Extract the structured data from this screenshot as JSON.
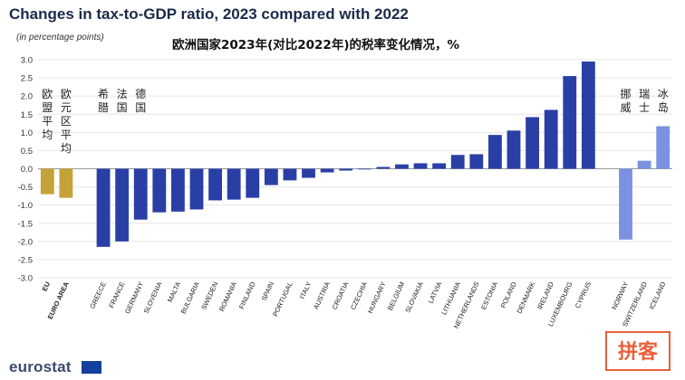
{
  "title": "Changes in tax-to-GDP ratio, 2023 compared with 2022",
  "subtitle": "(in percentage points)",
  "cn_title": "欧洲国家2023年(对比2022年)的税率变化情况，%",
  "brand": "eurostat",
  "watermark_text": "拼客",
  "colors": {
    "aggregate": "#c4a23a",
    "eu_member": "#2a3fa6",
    "efta": "#7a92e0",
    "axis_text": "#333333",
    "grid": "#e6e6e6"
  },
  "cn_labels": {
    "eu": "欧盟平均",
    "euro_area": "欧元区平均",
    "greece": "希腊",
    "france": "法国",
    "germany": "德国",
    "norway": "挪威",
    "switzerland": "瑞士",
    "iceland": "冰岛"
  },
  "chart_data": {
    "type": "bar",
    "categories": [
      "EU",
      "EURO AREA",
      "",
      "GREECE",
      "FRANCE",
      "GERMANY",
      "SLOVENIA",
      "MALTA",
      "BULGARIA",
      "SWEDEN",
      "ROMANIA",
      "FINLAND",
      "SPAIN",
      "PORTUGAL",
      "ITALY",
      "AUSTRIA",
      "CROATIA",
      "CZECHIA",
      "HUNGARY",
      "BELGIUM",
      "SLOVAKIA",
      "LATVIA",
      "LITHUANIA",
      "NETHERLANDS",
      "ESTONIA",
      "POLAND",
      "DENMARK",
      "IRELAND",
      "LUXEMBOURG",
      "CYPRUS",
      "",
      "NORWAY",
      "SWITZERLAND",
      "ICELAND"
    ],
    "groups": [
      "aggregate",
      "aggregate",
      "gap",
      "eu_member",
      "eu_member",
      "eu_member",
      "eu_member",
      "eu_member",
      "eu_member",
      "eu_member",
      "eu_member",
      "eu_member",
      "eu_member",
      "eu_member",
      "eu_member",
      "eu_member",
      "eu_member",
      "eu_member",
      "eu_member",
      "eu_member",
      "eu_member",
      "eu_member",
      "eu_member",
      "eu_member",
      "eu_member",
      "eu_member",
      "eu_member",
      "eu_member",
      "eu_member",
      "eu_member",
      "gap",
      "efta",
      "efta",
      "efta"
    ],
    "values": [
      -0.7,
      -0.8,
      null,
      -2.15,
      -2.0,
      -1.4,
      -1.2,
      -1.18,
      -1.12,
      -0.87,
      -0.85,
      -0.8,
      -0.45,
      -0.32,
      -0.25,
      -0.1,
      -0.05,
      0.0,
      0.05,
      0.12,
      0.15,
      0.15,
      0.38,
      0.4,
      0.93,
      1.05,
      1.42,
      1.62,
      2.55,
      2.95,
      null,
      -1.95,
      0.22,
      1.17
    ],
    "yticks": [
      "3.0",
      "2.5",
      "2.0",
      "1.5",
      "1.0",
      "0.5",
      "0.0",
      "-0.5",
      "-1.0",
      "-1.5",
      "-2.0",
      "-2.5",
      "-3.0"
    ],
    "ylim": [
      -3.0,
      3.0
    ],
    "grid": true
  }
}
